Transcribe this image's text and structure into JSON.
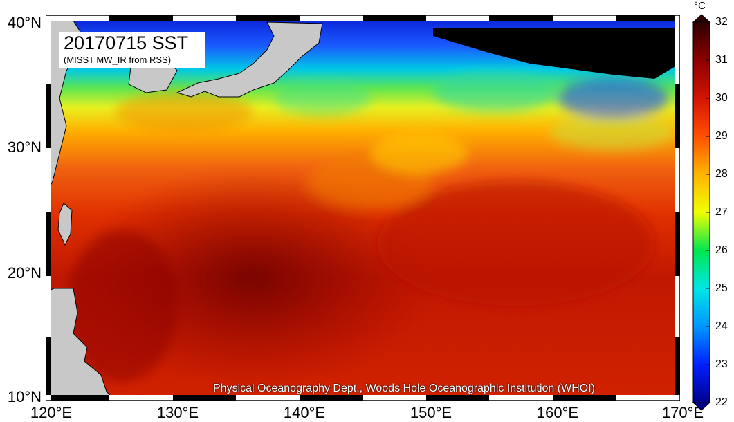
{
  "map": {
    "title": "20170715 SST",
    "subtitle": "(MISST MW_IR from RSS)",
    "credit": "Physical Oceanography Dept., Woods Hole Oceanographic Institution (WHOI)",
    "lat_labels": [
      "40°N",
      "30°N",
      "20°N",
      "10°N"
    ],
    "lon_labels": [
      "120°E",
      "130°E",
      "140°E",
      "150°E",
      "160°E",
      "170°E"
    ],
    "extent": {
      "lon_min": 120,
      "lon_max": 170,
      "lat_min": 10,
      "lat_max": 40
    },
    "colors": {
      "land": "#c8c8c8",
      "no_data": "#000000"
    }
  },
  "colorbar": {
    "unit": "°C",
    "min": 22,
    "max": 32,
    "labels": [
      "32",
      "31",
      "30",
      "29",
      "28",
      "27",
      "26",
      "25",
      "24",
      "23",
      "22"
    ],
    "colors": [
      "#00008c",
      "#0020ff",
      "#0096ff",
      "#00e6e6",
      "#00e650",
      "#f0ff00",
      "#ffb400",
      "#ff5000",
      "#d21400",
      "#8c0000",
      "#2d0000"
    ]
  }
}
